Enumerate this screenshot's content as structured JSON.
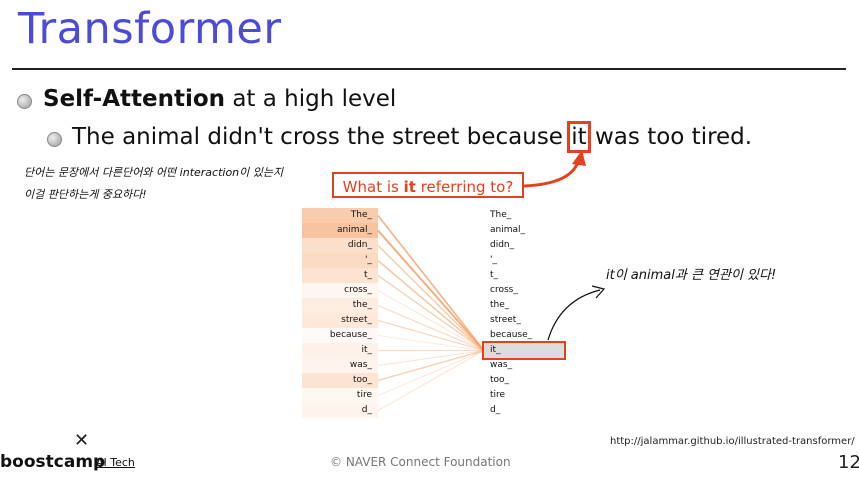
{
  "title": "Transformer",
  "bullets": {
    "l1_bold": "Self-Attention",
    "l1_rest": " at a high level",
    "l2_before": "The animal didn't cross the street because ",
    "l2_highlight": "it",
    "l2_after": " was too tired."
  },
  "handwriting": {
    "line1": "단어는 문장에서 다른단어와 어떤 interaction이 있는지",
    "line2": "이걸 판단하는게 중요하다!",
    "right": "it이 animal과 큰 연관이 있다!"
  },
  "callout": {
    "before": "What is ",
    "bold": "it",
    "after": " referring to?"
  },
  "tokens": [
    "The_",
    "animal_",
    "didn_",
    "'_",
    "t_",
    "cross_",
    "the_",
    "street_",
    "because_",
    "it_",
    "was_",
    "too_",
    "tire",
    "d_"
  ],
  "attention": [
    0.55,
    0.65,
    0.35,
    0.4,
    0.3,
    0.1,
    0.2,
    0.25,
    0.05,
    0.15,
    0.12,
    0.3,
    0.08,
    0.12
  ],
  "selected_token_index": 9,
  "footer": {
    "copyright": "©  NAVER Connect Foundation",
    "url": "http://jalammar.github.io/illustrated-transformer/",
    "page": "12",
    "logo": "boostcamp",
    "logo_sub": "AI Tech",
    "close_mark": "✕"
  },
  "colors": {
    "accent": "#e8401c",
    "title": "#4b4bd8",
    "attention": "#f6a36b"
  }
}
